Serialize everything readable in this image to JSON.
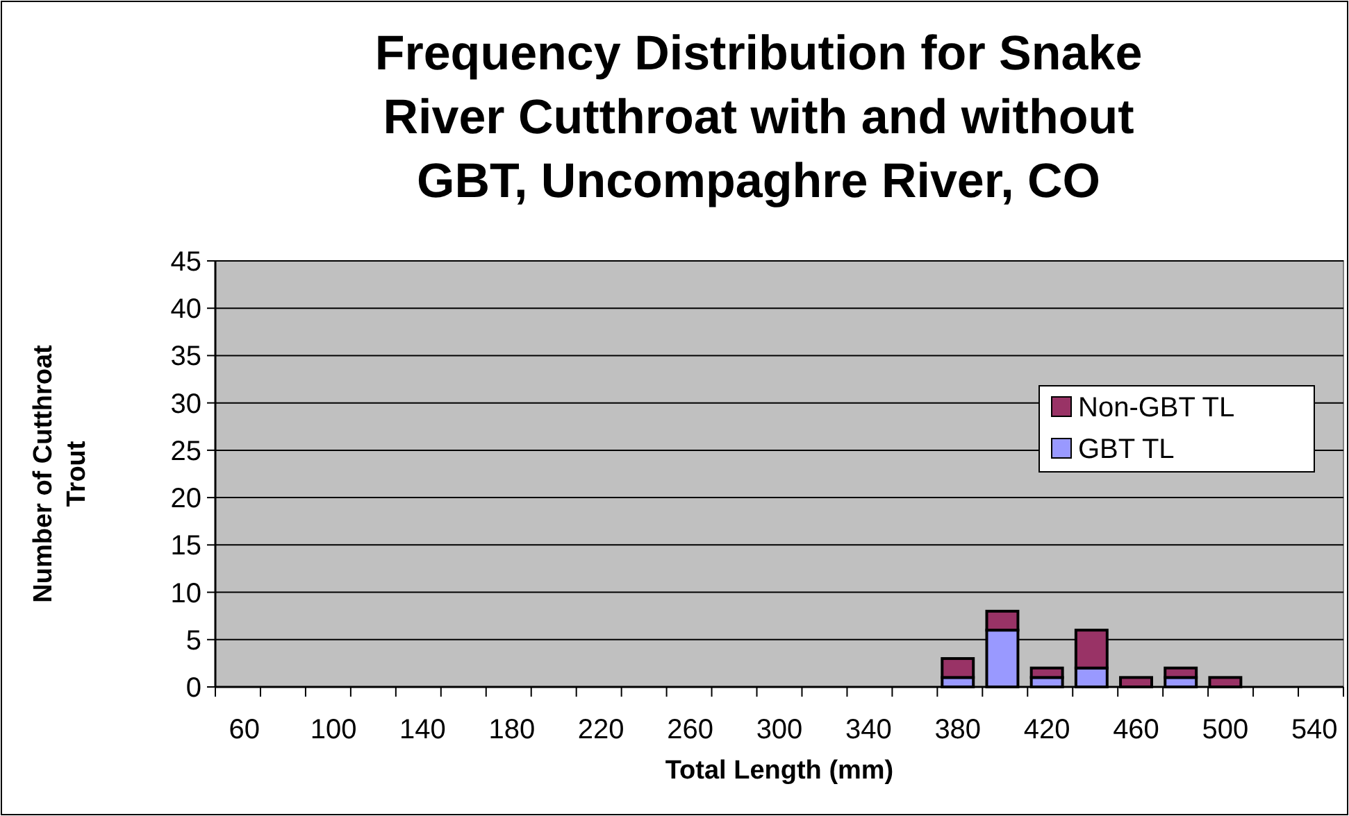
{
  "chart_data": {
    "type": "bar",
    "title": "Frequency Distribution for Snake River Cutthroat with and without GBT, Uncompaghre River, CO",
    "xlabel": "Total Length (mm)",
    "ylabel": "Number of Cutthroat Trout",
    "categories": [
      "60",
      null,
      "100",
      null,
      "140",
      null,
      "180",
      null,
      "220",
      null,
      "260",
      null,
      "300",
      null,
      "340",
      null,
      "380",
      null,
      "420",
      null,
      "460",
      null,
      "500",
      null,
      "540"
    ],
    "stacked": true,
    "series": [
      {
        "name": "GBT TL",
        "color": "#9999ff",
        "values": [
          0,
          0,
          0,
          0,
          0,
          0,
          0,
          0,
          0,
          0,
          0,
          0,
          0,
          0,
          0,
          0,
          1,
          6,
          1,
          2,
          0,
          1,
          0,
          0,
          0
        ]
      },
      {
        "name": "Non-GBT TL",
        "color": "#993366",
        "values": [
          0,
          0,
          0,
          0,
          0,
          0,
          0,
          0,
          0,
          0,
          0,
          0,
          0,
          0,
          0,
          0,
          2,
          2,
          1,
          4,
          1,
          1,
          1,
          0,
          0
        ]
      }
    ],
    "ylim": [
      0,
      45
    ],
    "yticks": [
      0,
      5,
      10,
      15,
      20,
      25,
      30,
      35,
      40,
      45
    ],
    "grid": "y",
    "legend": "right"
  }
}
